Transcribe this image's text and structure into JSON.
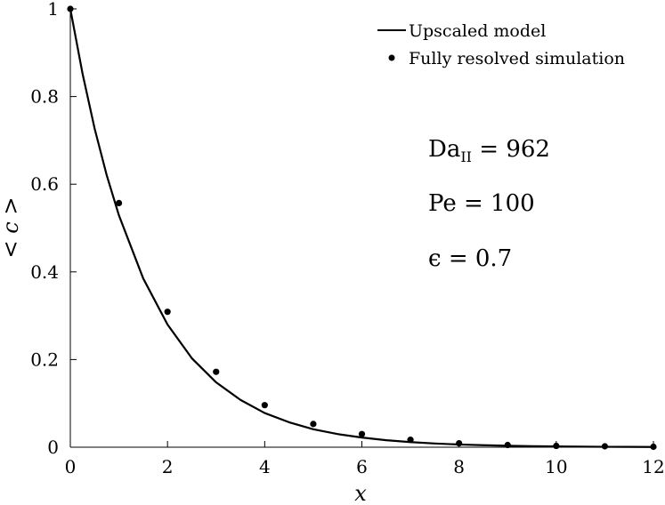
{
  "chart_data": {
    "type": "line",
    "xlabel": "x",
    "ylabel": "< c >",
    "xlim": [
      0,
      12
    ],
    "ylim": [
      0,
      1
    ],
    "xticks": [
      "0",
      "2",
      "4",
      "6",
      "8",
      "10",
      "12"
    ],
    "yticks": [
      "0",
      "0.2",
      "0.4",
      "0.6",
      "0.8",
      "1"
    ],
    "grid": false,
    "legend_position": "top-right",
    "series": [
      {
        "name": "Upscaled model",
        "style": "line",
        "color": "#000000",
        "x": [
          0,
          0.25,
          0.5,
          0.75,
          1,
          1.5,
          2,
          2.5,
          3,
          3.5,
          4,
          4.5,
          5,
          5.5,
          6,
          6.5,
          7,
          7.5,
          8,
          8.5,
          9,
          9.5,
          10,
          10.5,
          11,
          11.5,
          12
        ],
        "y": [
          1,
          0.853,
          0.727,
          0.62,
          0.529,
          0.385,
          0.28,
          0.203,
          0.148,
          0.108,
          0.078,
          0.057,
          0.041,
          0.03,
          0.022,
          0.016,
          0.0117,
          0.0085,
          0.0062,
          0.0045,
          0.0033,
          0.0024,
          0.0017,
          0.0013,
          0.0009,
          0.0007,
          0.0005
        ]
      },
      {
        "name": "Fully resolved simulation",
        "style": "marker",
        "color": "#000000",
        "x": [
          0,
          1,
          2,
          3,
          4,
          5,
          6,
          7,
          8,
          9,
          10,
          11,
          12
        ],
        "y": [
          1,
          0.557,
          0.309,
          0.172,
          0.096,
          0.053,
          0.03,
          0.017,
          0.009,
          0.005,
          0.003,
          0.002,
          0.001
        ]
      }
    ],
    "annotations": [
      {
        "base": "Da",
        "sub": "II",
        "rest": " = 962"
      },
      {
        "base": "Pe = 100",
        "sub": "",
        "rest": ""
      },
      {
        "base": "ϵ = 0.7",
        "sub": "",
        "rest": ""
      }
    ]
  }
}
